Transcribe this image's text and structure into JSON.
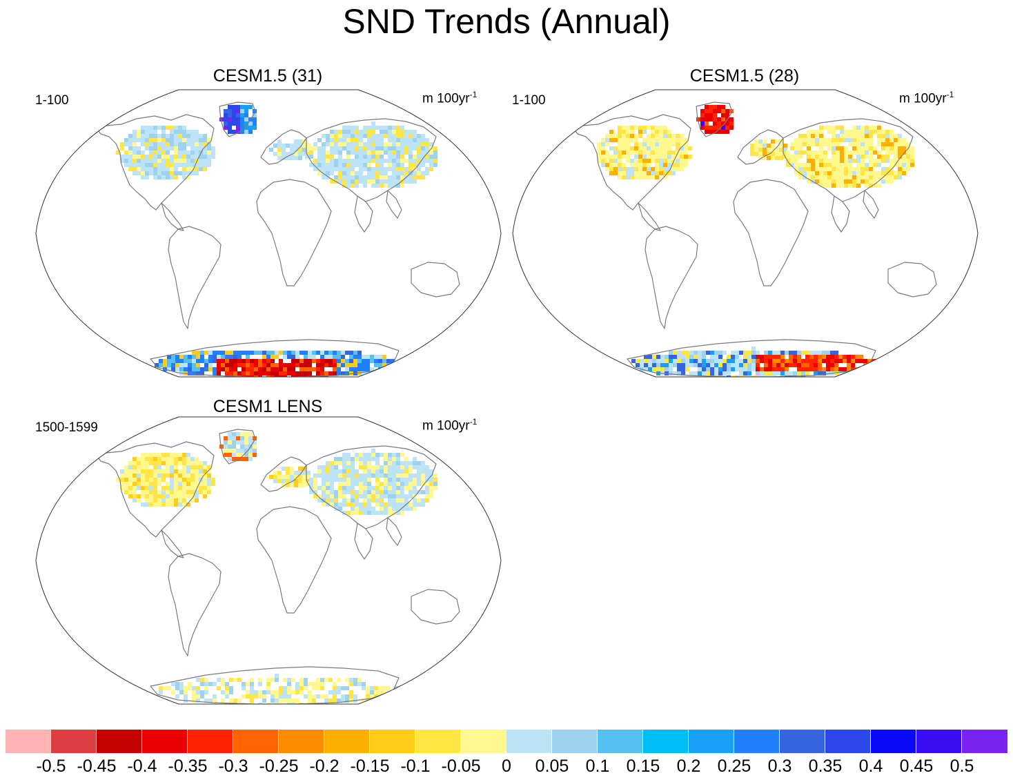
{
  "title": "SND Trends (Annual)",
  "panels": [
    {
      "title": "CESM1.5 (31)",
      "left_label": "1-100",
      "units_base": "m 100yr",
      "units_exp": "-1"
    },
    {
      "title": "CESM1.5 (28)",
      "left_label": "1-100",
      "units_base": "m 100yr",
      "units_exp": "-1"
    },
    {
      "title": "CESM1 LENS",
      "left_label": "1500-1599",
      "units_base": "m 100yr",
      "units_exp": "-1"
    }
  ],
  "colorbar": {
    "colors": [
      "#ffb3b3",
      "#dc3f41",
      "#c50000",
      "#ea0000",
      "#ff2400",
      "#ff6400",
      "#ff8c00",
      "#ffaf00",
      "#ffcc1a",
      "#ffe645",
      "#fff88f",
      "#bde3f7",
      "#9ed2ef",
      "#56c1f0",
      "#00bdf8",
      "#18a0f6",
      "#2180fb",
      "#3565e0",
      "#2c48e8",
      "#0b0af8",
      "#3a0df0",
      "#7a22ef"
    ],
    "labels": [
      "-0.5",
      "-0.45",
      "-0.4",
      "-0.35",
      "-0.3",
      "-0.25",
      "-0.2",
      "-0.15",
      "-0.1",
      "-0.05",
      "0",
      "0.05",
      "0.1",
      "0.15",
      "0.2",
      "0.25",
      "0.3",
      "0.35",
      "0.4",
      "0.45",
      "0.5"
    ]
  }
}
